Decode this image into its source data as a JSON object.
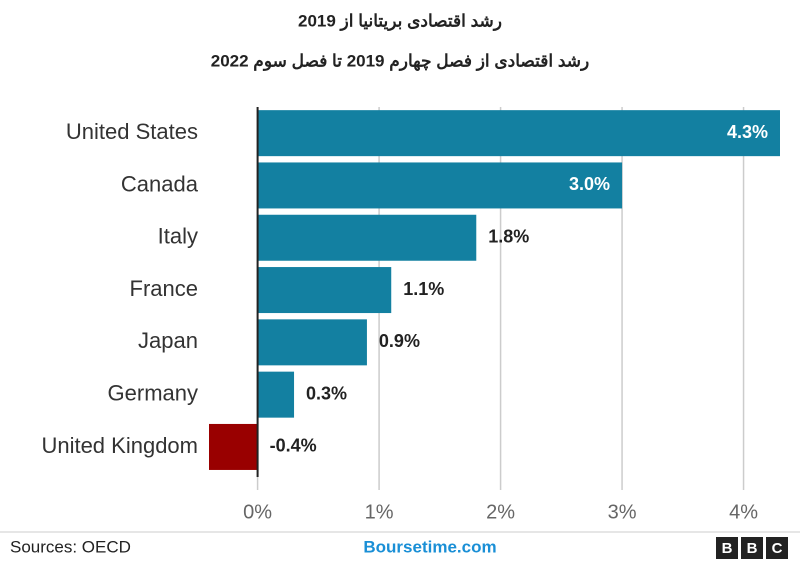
{
  "chart_data": {
    "type": "hbar",
    "title": "رشد اقتصادی بریتانیا از 2019",
    "subtitle": "رشد اقتصادی از فصل چهارم 2019 تا فصل سوم 2022",
    "categories": [
      "United States",
      "Canada",
      "Italy",
      "France",
      "Japan",
      "Germany",
      "United Kingdom"
    ],
    "values": [
      4.3,
      3.0,
      1.8,
      1.1,
      0.9,
      0.3,
      -0.4
    ],
    "value_labels": [
      "4.3%",
      "3.0%",
      "1.8%",
      "1.1%",
      "0.9%",
      "0.3%",
      "-0.4%"
    ],
    "colors": [
      "#1380a1",
      "#1380a1",
      "#1380a1",
      "#1380a1",
      "#1380a1",
      "#1380a1",
      "#990000"
    ],
    "xlim": [
      -0.4,
      4.3
    ],
    "xticks": [
      {
        "value": 0,
        "label": "0%"
      },
      {
        "value": 1,
        "label": "1%"
      },
      {
        "value": 2,
        "label": "2%"
      },
      {
        "value": 3,
        "label": "3%"
      },
      {
        "value": 4,
        "label": "4%"
      }
    ],
    "grid": true
  },
  "footer": {
    "source": "Sources: OECD",
    "site": "Boursetime.com",
    "logo": [
      "B",
      "B",
      "C"
    ]
  }
}
